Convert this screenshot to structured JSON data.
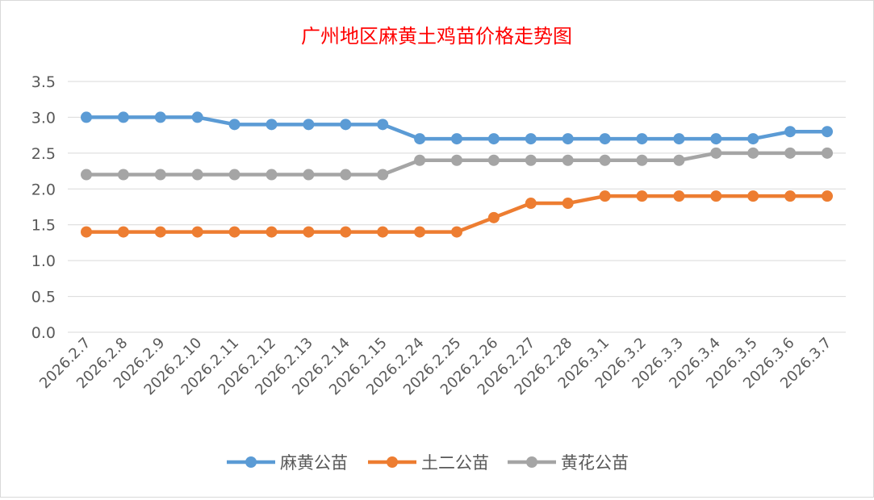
{
  "chart_data": {
    "type": "line",
    "title": "广州地区麻黄土鸡苗价格走势图",
    "title_color": "#ff0000",
    "categories": [
      "2026.2.7",
      "2026.2.8",
      "2026.2.9",
      "2026.2.10",
      "2026.2.11",
      "2026.2.12",
      "2026.2.13",
      "2026.2.14",
      "2026.2.15",
      "2026.2.24",
      "2026.2.25",
      "2026.2.26",
      "2026.2.27",
      "2026.2.28",
      "2026.3.1",
      "2026.3.2",
      "2026.3.3",
      "2026.3.4",
      "2026.3.5",
      "2026.3.6",
      "2026.3.7"
    ],
    "series": [
      {
        "name": "麻黄公苗",
        "color": "#5b9bd5",
        "values": [
          3.0,
          3.0,
          3.0,
          3.0,
          2.9,
          2.9,
          2.9,
          2.9,
          2.9,
          2.7,
          2.7,
          2.7,
          2.7,
          2.7,
          2.7,
          2.7,
          2.7,
          2.7,
          2.7,
          2.8,
          2.8
        ]
      },
      {
        "name": "土二公苗",
        "color": "#ed7d31",
        "values": [
          1.4,
          1.4,
          1.4,
          1.4,
          1.4,
          1.4,
          1.4,
          1.4,
          1.4,
          1.4,
          1.4,
          1.6,
          1.8,
          1.8,
          1.9,
          1.9,
          1.9,
          1.9,
          1.9,
          1.9,
          1.9
        ]
      },
      {
        "name": "黄花公苗",
        "color": "#a5a5a5",
        "values": [
          2.2,
          2.2,
          2.2,
          2.2,
          2.2,
          2.2,
          2.2,
          2.2,
          2.2,
          2.4,
          2.4,
          2.4,
          2.4,
          2.4,
          2.4,
          2.4,
          2.4,
          2.5,
          2.5,
          2.5,
          2.5
        ]
      }
    ],
    "yticks": [
      "0.0",
      "0.5",
      "1.0",
      "1.5",
      "2.0",
      "2.5",
      "3.0",
      "3.5"
    ],
    "ylim": [
      0,
      3.5
    ],
    "grid": true,
    "legend": "bottom"
  }
}
